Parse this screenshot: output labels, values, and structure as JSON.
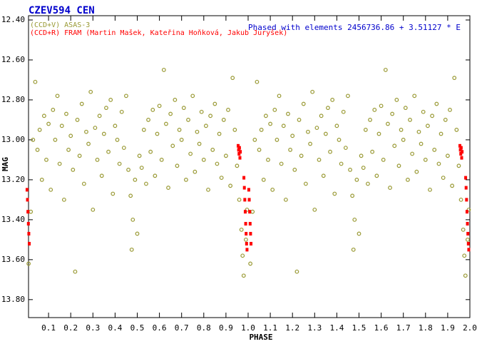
{
  "chart_data": {
    "type": "scatter",
    "title": "CZEV594 CEN",
    "subtitle": "Phased with elements 2456736.86 + 3.51127 * E",
    "xlabel": "PHASE",
    "ylabel": "MAG",
    "xlim": [
      0,
      2.0
    ],
    "ylim": [
      12.4,
      13.89
    ],
    "yinvert": true,
    "xticks": [
      0.1,
      0.2,
      0.3,
      0.4,
      0.5,
      0.6,
      0.7,
      0.8,
      0.9,
      {
        "value": 1.0,
        "label": "1.0"
      },
      1.1,
      1.2,
      1.3,
      1.4,
      1.5,
      1.6,
      1.7,
      1.8,
      1.9,
      {
        "value": 2.0,
        "label": "2.0"
      }
    ],
    "yticks": [
      {
        "value": 12.4,
        "label": "12.40"
      },
      {
        "value": 12.6,
        "label": "12.60"
      },
      {
        "value": 12.8,
        "label": "12.80"
      },
      {
        "value": 13.0,
        "label": "13.00"
      },
      {
        "value": 13.2,
        "label": "13.20"
      },
      {
        "value": 13.4,
        "label": "13.40"
      },
      {
        "value": 13.6,
        "label": "13.60"
      },
      {
        "value": 13.8,
        "label": "13.80"
      }
    ],
    "series": [
      {
        "name": "(CCD+V) ASAS-3",
        "color": "#999933",
        "marker": "circle",
        "x": [
          0.01,
          0.02,
          0.03,
          0.04,
          0.05,
          0.06,
          0.07,
          0.08,
          0.09,
          0.1,
          0.11,
          0.12,
          0.13,
          0.14,
          0.15,
          0.16,
          0.17,
          0.18,
          0.19,
          0.2,
          0.21,
          0.22,
          0.23,
          0.24,
          0.25,
          0.26,
          0.27,
          0.28,
          0.29,
          0.3,
          0.31,
          0.32,
          0.33,
          0.34,
          0.35,
          0.36,
          0.37,
          0.38,
          0.39,
          0.4,
          0.41,
          0.42,
          0.43,
          0.44,
          0.45,
          0.46,
          0.47,
          0.475,
          0.48,
          0.49,
          0.5,
          0.51,
          0.52,
          0.53,
          0.54,
          0.55,
          0.56,
          0.57,
          0.58,
          0.59,
          0.6,
          0.61,
          0.62,
          0.63,
          0.64,
          0.65,
          0.66,
          0.67,
          0.68,
          0.69,
          0.7,
          0.71,
          0.72,
          0.73,
          0.74,
          0.75,
          0.76,
          0.77,
          0.78,
          0.79,
          0.8,
          0.81,
          0.82,
          0.83,
          0.84,
          0.85,
          0.86,
          0.87,
          0.88,
          0.89,
          0.9,
          0.91,
          0.92,
          0.93,
          0.94,
          0.95,
          0.96,
          0.97,
          0.975,
          0.98,
          0.99,
          0.995,
          1.01,
          1.02,
          1.03,
          1.04,
          1.05,
          1.06,
          1.07,
          1.08,
          1.09,
          1.1,
          1.11,
          1.12,
          1.13,
          1.14,
          1.15,
          1.16,
          1.17,
          1.18,
          1.19,
          1.2,
          1.21,
          1.22,
          1.23,
          1.24,
          1.25,
          1.26,
          1.27,
          1.28,
          1.29,
          1.3,
          1.31,
          1.32,
          1.33,
          1.34,
          1.35,
          1.36,
          1.37,
          1.38,
          1.39,
          1.4,
          1.41,
          1.42,
          1.43,
          1.44,
          1.45,
          1.46,
          1.47,
          1.475,
          1.48,
          1.49,
          1.5,
          1.51,
          1.52,
          1.53,
          1.54,
          1.55,
          1.56,
          1.57,
          1.58,
          1.59,
          1.6,
          1.61,
          1.62,
          1.63,
          1.64,
          1.65,
          1.66,
          1.67,
          1.68,
          1.69,
          1.7,
          1.71,
          1.72,
          1.73,
          1.74,
          1.75,
          1.76,
          1.77,
          1.78,
          1.79,
          1.8,
          1.81,
          1.82,
          1.83,
          1.84,
          1.85,
          1.86,
          1.87,
          1.88,
          1.89,
          1.9,
          1.91,
          1.92,
          1.93,
          1.94,
          1.95,
          1.96,
          1.97,
          1.975,
          1.98,
          1.99,
          1.995
        ],
        "values": [
          13.62,
          13.36,
          13.0,
          12.71,
          13.05,
          12.95,
          13.2,
          12.88,
          13.1,
          12.92,
          13.25,
          12.85,
          13.0,
          12.78,
          13.12,
          12.93,
          13.3,
          12.87,
          13.05,
          12.98,
          13.15,
          13.66,
          12.9,
          13.08,
          12.82,
          13.22,
          12.96,
          13.02,
          12.76,
          13.35,
          12.94,
          13.1,
          12.88,
          13.18,
          12.97,
          12.84,
          13.06,
          12.8,
          13.27,
          12.93,
          13.0,
          13.12,
          12.86,
          13.04,
          12.78,
          13.15,
          13.28,
          13.55,
          13.4,
          13.2,
          13.47,
          13.08,
          13.14,
          12.95,
          13.22,
          12.9,
          13.06,
          12.85,
          13.18,
          12.97,
          12.83,
          13.1,
          12.65,
          12.92,
          13.24,
          12.87,
          13.03,
          12.8,
          13.13,
          12.95,
          13.0,
          12.84,
          13.2,
          12.9,
          13.07,
          12.78,
          13.16,
          12.96,
          13.02,
          12.86,
          13.1,
          12.93,
          13.25,
          12.88,
          13.05,
          12.82,
          13.12,
          12.97,
          13.19,
          12.9,
          13.08,
          12.85,
          13.23,
          12.69,
          12.95,
          13.13,
          13.3,
          13.45,
          13.58,
          13.68,
          13.5,
          13.35,
          13.62,
          13.36,
          13.0,
          12.71,
          13.05,
          12.95,
          13.2,
          12.88,
          13.1,
          12.92,
          13.25,
          12.85,
          13.0,
          12.78,
          13.12,
          12.93,
          13.3,
          12.87,
          13.05,
          12.98,
          13.15,
          13.66,
          12.9,
          13.08,
          12.82,
          13.22,
          12.96,
          13.02,
          12.76,
          13.35,
          12.94,
          13.1,
          12.88,
          13.18,
          12.97,
          12.84,
          13.06,
          12.8,
          13.27,
          12.93,
          13.0,
          13.12,
          12.86,
          13.04,
          12.78,
          13.15,
          13.28,
          13.55,
          13.4,
          13.2,
          13.47,
          13.08,
          13.14,
          12.95,
          13.22,
          12.9,
          13.06,
          12.85,
          13.18,
          12.97,
          12.83,
          13.1,
          12.65,
          12.92,
          13.24,
          12.87,
          13.03,
          12.8,
          13.13,
          12.95,
          13.0,
          12.84,
          13.2,
          12.9,
          13.07,
          12.78,
          13.16,
          12.96,
          13.02,
          12.86,
          13.1,
          12.93,
          13.25,
          12.88,
          13.05,
          12.82,
          13.12,
          12.97,
          13.19,
          12.9,
          13.08,
          12.85,
          13.23,
          12.69,
          12.95,
          13.13,
          13.3,
          13.45,
          13.58,
          13.68,
          13.5,
          13.35
        ]
      },
      {
        "name": "(CCD+R) FRAM (Martin Mašek, Kateřina Hoňková, Jakub Juryšek)",
        "color": "#ff0000",
        "marker": "square",
        "x": [
          0.003,
          0.005,
          0.007,
          0.009,
          0.011,
          0.013,
          0.955,
          0.957,
          0.959,
          0.961,
          0.963,
          0.965,
          0.981,
          0.983,
          0.985,
          0.987,
          0.989,
          0.991,
          0.993,
          0.995,
          1.003,
          1.005,
          1.007,
          1.009,
          1.011,
          1.013,
          1.955,
          1.957,
          1.959,
          1.961,
          1.963,
          1.965,
          1.981,
          1.983,
          1.985,
          1.987,
          1.989,
          1.991,
          1.993,
          1.995
        ],
        "values": [
          13.25,
          13.3,
          13.36,
          13.42,
          13.47,
          13.52,
          13.03,
          13.05,
          13.07,
          13.04,
          13.09,
          13.06,
          13.19,
          13.24,
          13.3,
          13.36,
          13.42,
          13.47,
          13.52,
          13.55,
          13.25,
          13.3,
          13.36,
          13.42,
          13.47,
          13.52,
          13.03,
          13.05,
          13.07,
          13.04,
          13.09,
          13.06,
          13.19,
          13.24,
          13.3,
          13.36,
          13.42,
          13.47,
          13.52,
          13.55
        ]
      }
    ]
  }
}
